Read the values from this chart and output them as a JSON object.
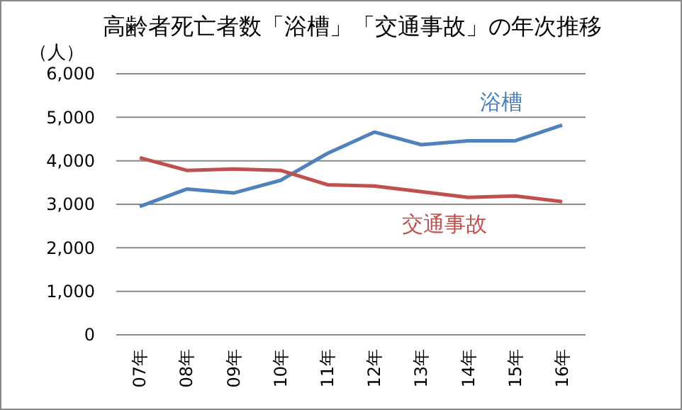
{
  "chart_data": {
    "type": "line",
    "title": "高齢者死亡者数「浴槽」「交通事故」の年次推移",
    "ylabel": "（人）",
    "categories": [
      "07年",
      "08年",
      "09年",
      "10年",
      "11年",
      "12年",
      "13年",
      "14年",
      "15年",
      "16年"
    ],
    "series": [
      {
        "name": "浴槽",
        "color": "#4f81bd",
        "values": [
          2950,
          3350,
          3260,
          3550,
          4170,
          4660,
          4370,
          4460,
          4460,
          4820
        ]
      },
      {
        "name": "交通事故",
        "color": "#c0504d",
        "values": [
          4070,
          3780,
          3810,
          3780,
          3450,
          3420,
          3290,
          3160,
          3190,
          3060
        ]
      }
    ],
    "ylim": [
      0,
      6000
    ],
    "yticks": [
      {
        "value": 0,
        "label": "0"
      },
      {
        "value": 1000,
        "label": "1,000"
      },
      {
        "value": 2000,
        "label": "2,000"
      },
      {
        "value": 3000,
        "label": "3,000"
      },
      {
        "value": 4000,
        "label": "4,000"
      },
      {
        "value": 5000,
        "label": "5,000"
      },
      {
        "value": 6000,
        "label": "6,000"
      }
    ],
    "grid": "y",
    "legend": false,
    "marker": "none",
    "line_style": "solid"
  }
}
